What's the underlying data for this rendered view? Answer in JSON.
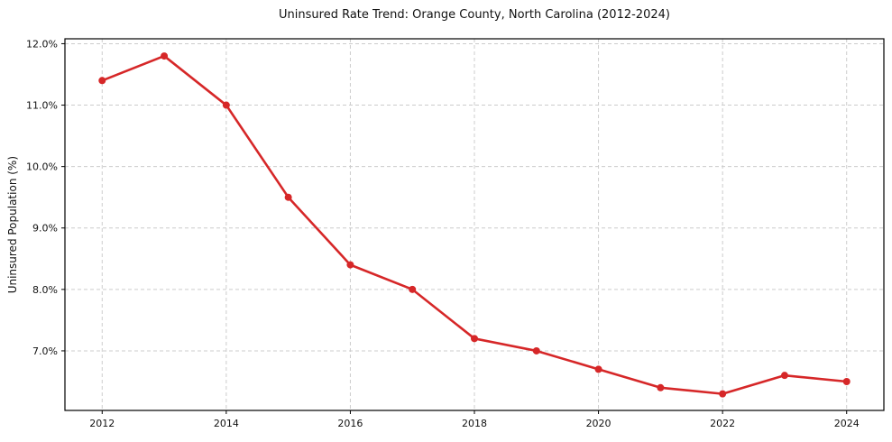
{
  "chart_data": {
    "type": "line",
    "title": "Uninsured Rate Trend: Orange County, North Carolina (2012-2024)",
    "xlabel": "",
    "ylabel": "Uninsured Population (%)",
    "x": [
      2012,
      2013,
      2014,
      2015,
      2016,
      2017,
      2018,
      2019,
      2020,
      2021,
      2022,
      2023,
      2024
    ],
    "values": [
      11.4,
      11.8,
      11.0,
      9.5,
      8.4,
      8.0,
      7.2,
      7.0,
      6.7,
      6.4,
      6.3,
      6.6,
      6.5
    ],
    "xlim": [
      2011.4,
      2024.6
    ],
    "ylim": [
      6.03,
      12.08
    ],
    "xticks": [
      2012,
      2014,
      2016,
      2018,
      2020,
      2022,
      2024
    ],
    "xtick_labels": [
      "2012",
      "2014",
      "2016",
      "2018",
      "2020",
      "2022",
      "2024"
    ],
    "yticks": [
      7,
      8,
      9,
      10,
      11,
      12
    ],
    "ytick_labels": [
      "7.0%",
      "8.0%",
      "9.0%",
      "10.0%",
      "11.0%",
      "12.0%"
    ],
    "grid": true,
    "legend": false,
    "line_color": "#d62728",
    "grid_color": "#cccccc",
    "frame_color": "#000000",
    "text_color": "#111111"
  }
}
